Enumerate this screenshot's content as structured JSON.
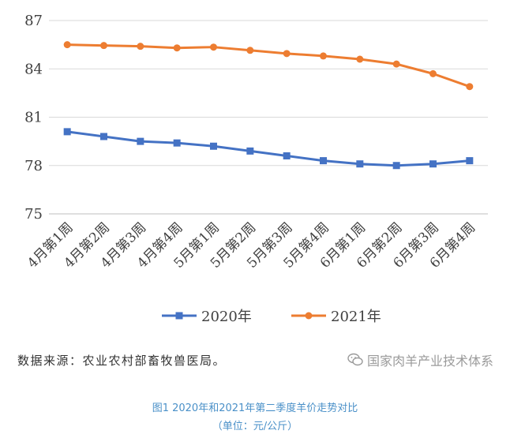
{
  "chart_data": {
    "type": "line",
    "categories": [
      "4月第1周",
      "4月第2周",
      "4月第3周",
      "4月第4周",
      "5月第1周",
      "5月第2周",
      "5月第3周",
      "5月第4周",
      "6月第1周",
      "6月第2周",
      "6月第3周",
      "6月第4周"
    ],
    "series": [
      {
        "name": "2020年",
        "color": "#4472c4",
        "marker": "square",
        "values": [
          80.1,
          79.8,
          79.5,
          79.4,
          79.2,
          78.9,
          78.6,
          78.3,
          78.1,
          78.0,
          78.1,
          78.3
        ]
      },
      {
        "name": "2021年",
        "color": "#ed7d31",
        "marker": "circle",
        "values": [
          85.5,
          85.45,
          85.4,
          85.3,
          85.35,
          85.15,
          84.95,
          84.8,
          84.6,
          84.3,
          83.7,
          82.9
        ]
      }
    ],
    "ylim": [
      75,
      87
    ],
    "yticks": [
      75,
      78,
      81,
      84,
      87
    ],
    "grid": true,
    "legend": "bottom"
  },
  "source_text": "数据来源：农业农村部畜牧兽医局。",
  "watermark_text": "国家肉羊产业技术体系",
  "caption": "图1  2020年和2021年第二季度羊价走势对比",
  "unit": "（单位：元/公斤）"
}
